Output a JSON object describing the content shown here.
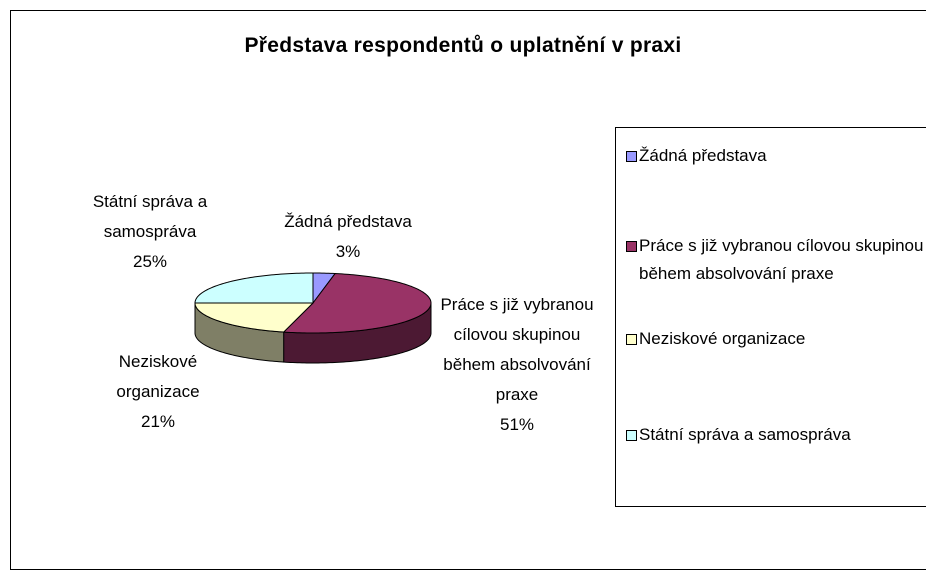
{
  "chart_data": {
    "type": "pie3d",
    "title": "Představa respondentů o uplatnění v praxi",
    "categories": [
      "Žádná představa",
      "Práce s již vybranou cílovou skupinou během absolvování praxe",
      "Neziskové organizace",
      "Státní správa a samospráva"
    ],
    "values": [
      3,
      51,
      21,
      25
    ],
    "value_labels": [
      "3%",
      "51%",
      "21%",
      "25%"
    ],
    "colors": [
      "#9999ff",
      "#993366",
      "#ffffcc",
      "#ccffff"
    ],
    "legend": "right"
  }
}
